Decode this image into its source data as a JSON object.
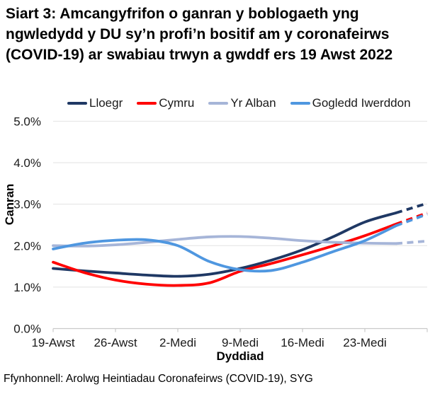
{
  "title": "Siart 3: Amcangyfrifon o ganran y boblogaeth yng ngwledydd y DU sy’n profi’n bositif am y coronafeirws (COVID-19) ar swabiau trwyn a gwddf ers 19 Awst 2022",
  "source": "Ffynhonnell: Arolwg Heintiadau Coronafeirws (COVID-19), SYG",
  "chart_data": {
    "type": "line",
    "title": "Siart 3: Amcangyfrifon o ganran y boblogaeth yng ngwledydd y DU sy’n profi’n bositif am y coronafeirws (COVID-19) ar swabiau trwyn a gwddf ers 19 Awst 2022",
    "xlabel": "Dyddiad",
    "ylabel": "Canran",
    "legend_position": "top",
    "grid": "horizontal",
    "ylim": [
      0,
      5
    ],
    "y_tick_labels": [
      "0.0%",
      "1.0%",
      "2.0%",
      "3.0%",
      "4.0%",
      "5.0%"
    ],
    "y_tick_values": [
      0,
      1,
      2,
      3,
      4,
      5
    ],
    "x_tick_labels": [
      "19-Awst",
      "26-Awst",
      "2-Medi",
      "9-Medi",
      "16-Medi",
      "23-Medi"
    ],
    "x_tick_days": [
      0,
      7,
      14,
      21,
      28,
      35
    ],
    "x_axis_end_day": 42,
    "x_days": [
      0,
      3.5,
      7,
      10.5,
      14,
      17.5,
      21,
      24.5,
      28,
      31.5,
      35,
      38.5,
      42
    ],
    "series": [
      {
        "name": "Lloegr",
        "color": "#1f3864",
        "dash_from_day": 38.5,
        "values": [
          1.45,
          1.39,
          1.34,
          1.29,
          1.26,
          1.31,
          1.45,
          1.65,
          1.9,
          2.22,
          2.57,
          2.79,
          3.02
        ]
      },
      {
        "name": "Cymru",
        "color": "#ff0000",
        "dash_from_day": 38.5,
        "values": [
          1.6,
          1.35,
          1.17,
          1.07,
          1.04,
          1.1,
          1.38,
          1.57,
          1.78,
          2.0,
          2.24,
          2.52,
          2.79
        ]
      },
      {
        "name": "Yr Alban",
        "color": "#a6b5d8",
        "dash_from_day": 38.5,
        "values": [
          2.0,
          1.99,
          2.02,
          2.08,
          2.15,
          2.21,
          2.22,
          2.18,
          2.12,
          2.08,
          2.06,
          2.05,
          2.11
        ]
      },
      {
        "name": "Gogledd Iwerddon",
        "color": "#4f97e0",
        "dash_from_day": 38.5,
        "values": [
          1.92,
          2.06,
          2.13,
          2.14,
          2.0,
          1.62,
          1.42,
          1.4,
          1.6,
          1.86,
          2.12,
          2.48,
          2.76
        ]
      }
    ]
  }
}
